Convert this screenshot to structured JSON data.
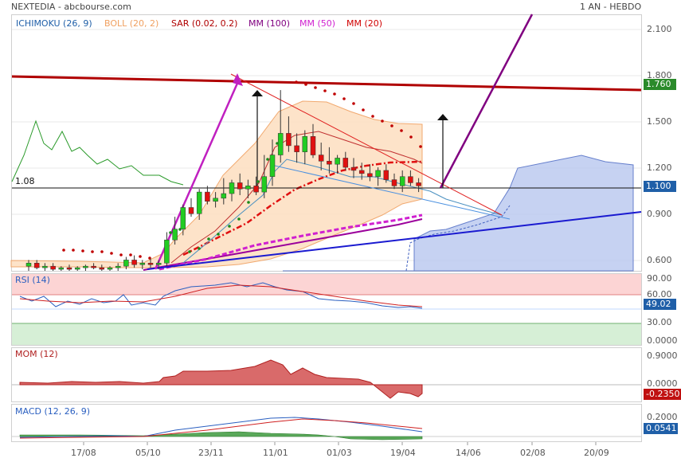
{
  "header": {
    "symbol": "NEXTEDIA - abcbourse.com",
    "period": "1 AN - HEBDO"
  },
  "legend": [
    {
      "label": "ICHIMOKU (26, 9)",
      "color": "#1f5fa8"
    },
    {
      "label": "BOLL (20, 2)",
      "color": "#f0a060"
    },
    {
      "label": "SAR (0.02, 0.2)",
      "color": "#b00000"
    },
    {
      "label": "MM (100)",
      "color": "#800080"
    },
    {
      "label": "MM (50)",
      "color": "#d020d0"
    },
    {
      "label": "MM (20)",
      "color": "#d00000"
    }
  ],
  "panels": {
    "rsi": "RSI (14)",
    "mom": "MOM (12)",
    "macd": "MACD (12, 26, 9)"
  },
  "price_labels": {
    "upper": "1.760",
    "current": "1.100",
    "ref": "1.08"
  },
  "chart_data": {
    "type": "candlestick",
    "x_ticks": [
      "17/08",
      "05/10",
      "23/11",
      "11/01",
      "01/03",
      "19/04",
      "14/06",
      "02/08",
      "20/09"
    ],
    "price_axis": {
      "ticks": [
        "2.100",
        "1.800",
        "1.500",
        "1.200",
        "0.900",
        "0.600"
      ],
      "ylim": [
        0.55,
        2.2
      ]
    },
    "candles": [
      {
        "o": 0.58,
        "h": 0.62,
        "l": 0.55,
        "c": 0.6
      },
      {
        "o": 0.6,
        "h": 0.62,
        "l": 0.56,
        "c": 0.57
      },
      {
        "o": 0.57,
        "h": 0.6,
        "l": 0.55,
        "c": 0.58
      },
      {
        "o": 0.58,
        "h": 0.6,
        "l": 0.55,
        "c": 0.56
      },
      {
        "o": 0.56,
        "h": 0.58,
        "l": 0.55,
        "c": 0.57
      },
      {
        "o": 0.57,
        "h": 0.59,
        "l": 0.55,
        "c": 0.56
      },
      {
        "o": 0.56,
        "h": 0.58,
        "l": 0.55,
        "c": 0.57
      },
      {
        "o": 0.57,
        "h": 0.59,
        "l": 0.55,
        "c": 0.58
      },
      {
        "o": 0.58,
        "h": 0.6,
        "l": 0.56,
        "c": 0.57
      },
      {
        "o": 0.57,
        "h": 0.59,
        "l": 0.55,
        "c": 0.56
      },
      {
        "o": 0.56,
        "h": 0.58,
        "l": 0.55,
        "c": 0.57
      },
      {
        "o": 0.57,
        "h": 0.6,
        "l": 0.55,
        "c": 0.58
      },
      {
        "o": 0.58,
        "h": 0.64,
        "l": 0.56,
        "c": 0.62
      },
      {
        "o": 0.62,
        "h": 0.65,
        "l": 0.57,
        "c": 0.59
      },
      {
        "o": 0.59,
        "h": 0.62,
        "l": 0.56,
        "c": 0.6
      },
      {
        "o": 0.6,
        "h": 0.63,
        "l": 0.57,
        "c": 0.59
      },
      {
        "o": 0.59,
        "h": 0.62,
        "l": 0.56,
        "c": 0.6
      },
      {
        "o": 0.6,
        "h": 0.8,
        "l": 0.58,
        "c": 0.75
      },
      {
        "o": 0.75,
        "h": 0.9,
        "l": 0.72,
        "c": 0.82
      },
      {
        "o": 0.82,
        "h": 0.98,
        "l": 0.78,
        "c": 0.96
      },
      {
        "o": 0.96,
        "h": 1.02,
        "l": 0.9,
        "c": 0.92
      },
      {
        "o": 0.92,
        "h": 1.08,
        "l": 0.88,
        "c": 1.06
      },
      {
        "o": 1.06,
        "h": 1.1,
        "l": 0.98,
        "c": 1.0
      },
      {
        "o": 1.0,
        "h": 1.06,
        "l": 0.96,
        "c": 1.02
      },
      {
        "o": 1.02,
        "h": 1.15,
        "l": 0.98,
        "c": 1.05
      },
      {
        "o": 1.05,
        "h": 1.14,
        "l": 1.0,
        "c": 1.12
      },
      {
        "o": 1.12,
        "h": 1.18,
        "l": 1.04,
        "c": 1.08
      },
      {
        "o": 1.08,
        "h": 1.14,
        "l": 1.02,
        "c": 1.1
      },
      {
        "o": 1.1,
        "h": 1.16,
        "l": 1.04,
        "c": 1.06
      },
      {
        "o": 1.06,
        "h": 1.3,
        "l": 1.02,
        "c": 1.16
      },
      {
        "o": 1.16,
        "h": 1.4,
        "l": 1.1,
        "c": 1.3
      },
      {
        "o": 1.3,
        "h": 1.72,
        "l": 1.25,
        "c": 1.44
      },
      {
        "o": 1.44,
        "h": 1.55,
        "l": 1.32,
        "c": 1.36
      },
      {
        "o": 1.36,
        "h": 1.44,
        "l": 1.25,
        "c": 1.32
      },
      {
        "o": 1.32,
        "h": 1.46,
        "l": 1.24,
        "c": 1.42
      },
      {
        "o": 1.42,
        "h": 1.5,
        "l": 1.28,
        "c": 1.3
      },
      {
        "o": 1.3,
        "h": 1.38,
        "l": 1.2,
        "c": 1.26
      },
      {
        "o": 1.26,
        "h": 1.35,
        "l": 1.18,
        "c": 1.24
      },
      {
        "o": 1.24,
        "h": 1.3,
        "l": 1.18,
        "c": 1.28
      },
      {
        "o": 1.28,
        "h": 1.32,
        "l": 1.2,
        "c": 1.22
      },
      {
        "o": 1.22,
        "h": 1.28,
        "l": 1.15,
        "c": 1.2
      },
      {
        "o": 1.2,
        "h": 1.25,
        "l": 1.14,
        "c": 1.18
      },
      {
        "o": 1.18,
        "h": 1.24,
        "l": 1.13,
        "c": 1.16
      },
      {
        "o": 1.16,
        "h": 1.22,
        "l": 1.1,
        "c": 1.2
      },
      {
        "o": 1.2,
        "h": 1.24,
        "l": 1.12,
        "c": 1.14
      },
      {
        "o": 1.14,
        "h": 1.18,
        "l": 1.08,
        "c": 1.1
      },
      {
        "o": 1.1,
        "h": 1.2,
        "l": 1.06,
        "c": 1.16
      },
      {
        "o": 1.16,
        "h": 1.2,
        "l": 1.1,
        "c": 1.12
      },
      {
        "o": 1.12,
        "h": 1.15,
        "l": 1.06,
        "c": 1.1
      }
    ],
    "rsi": {
      "ticks": [
        "90.00",
        "60.00",
        "30.00",
        "0.0000"
      ],
      "last": "49.02"
    },
    "mom": {
      "ticks": [
        "0.9000",
        "0.0000"
      ],
      "last": "-0.2350"
    },
    "macd": {
      "ticks": [
        "0.2000"
      ],
      "last": "0.0541"
    }
  }
}
